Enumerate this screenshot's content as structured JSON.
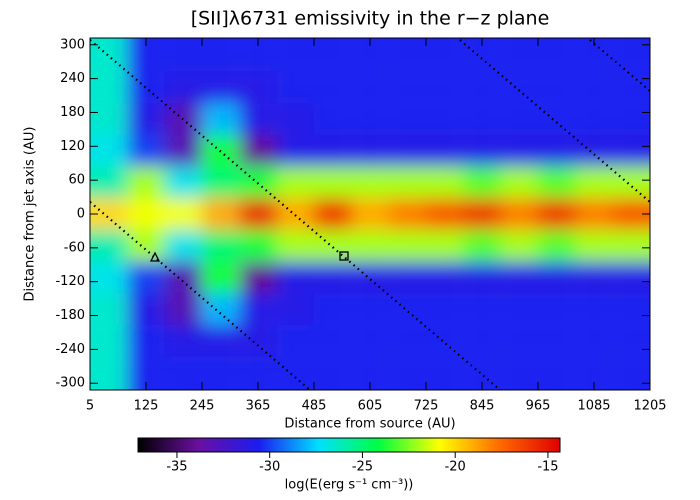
{
  "chart_data": {
    "type": "heatmap",
    "title": "[SII]λ6731 emissivity in the r−z plane",
    "x_label": "Distance from source (AU)",
    "y_label": "Distance from jet axis (AU)",
    "colorbar_label": "log(E(erg s⁻¹ cm⁻³))",
    "xlim": [
      5,
      1205
    ],
    "ylim": [
      -312,
      312
    ],
    "xticks": [
      5,
      125,
      245,
      365,
      485,
      605,
      725,
      845,
      965,
      1085,
      1205
    ],
    "yticks": [
      300,
      240,
      180,
      120,
      60,
      0,
      -60,
      -120,
      -180,
      -240,
      -300
    ],
    "clim": [
      -37.1,
      -14.35
    ],
    "cticks": [
      -35,
      -30,
      -25,
      -20,
      -15
    ],
    "colormap": [
      "#000000",
      "#6a0fa0",
      "#1c1cf0",
      "#00e0ff",
      "#00ff40",
      "#ffff00",
      "#ff6a00",
      "#e00000"
    ],
    "x": [
      45,
      125,
      205,
      285,
      365,
      445,
      525,
      605,
      685,
      765,
      845,
      925,
      1005,
      1085,
      1165
    ],
    "y": [
      280,
      224,
      168,
      112,
      56,
      0,
      -56,
      -112,
      -168,
      -224,
      -280
    ],
    "z": [
      [
        -26.5,
        -30.5,
        -30.5,
        -30.5,
        -30.5,
        -30.5,
        -30.5,
        -30.5,
        -30.5,
        -30.5,
        -30.5,
        -30.5,
        -30.5,
        -30.5,
        -30.5
      ],
      [
        -26.5,
        -30.5,
        -31,
        -31,
        -31,
        -30.5,
        -30.5,
        -30.5,
        -30.5,
        -30.5,
        -30.5,
        -30.5,
        -30.5,
        -30.5,
        -30.5
      ],
      [
        -26.5,
        -31,
        -33,
        -28,
        -31,
        -31,
        -30.5,
        -30.5,
        -30.5,
        -30.5,
        -30.5,
        -30.5,
        -30.5,
        -30.5,
        -30.5
      ],
      [
        -27,
        -30,
        -33,
        -24,
        -34,
        -31,
        -31,
        -31,
        -31,
        -31,
        -31,
        -31,
        -31,
        -31,
        -31
      ],
      [
        -26,
        -22,
        -27,
        -25,
        -24,
        -22,
        -22,
        -22,
        -22,
        -22,
        -23,
        -22,
        -23,
        -22,
        -22
      ],
      [
        -20,
        -21,
        -21,
        -19,
        -15.5,
        -19,
        -16,
        -19,
        -18,
        -17,
        -16,
        -18,
        -16,
        -18,
        -17
      ],
      [
        -26,
        -22,
        -27,
        -25,
        -24,
        -22,
        -22,
        -22,
        -22,
        -22,
        -23,
        -22,
        -23,
        -22,
        -22
      ],
      [
        -27,
        -30,
        -33,
        -24,
        -34,
        -31,
        -31,
        -31,
        -31,
        -31,
        -31,
        -31,
        -31,
        -31,
        -31
      ],
      [
        -26.5,
        -31,
        -33,
        -28,
        -31,
        -31,
        -30.5,
        -30.5,
        -30.5,
        -30.5,
        -30.5,
        -30.5,
        -30.5,
        -30.5,
        -30.5
      ],
      [
        -26.5,
        -30.5,
        -31,
        -31,
        -31,
        -30.5,
        -30.5,
        -30.5,
        -30.5,
        -30.5,
        -30.5,
        -30.5,
        -30.5,
        -30.5,
        -30.5
      ],
      [
        -26.5,
        -30.5,
        -30.5,
        -30.5,
        -30.5,
        -30.5,
        -30.5,
        -30.5,
        -30.5,
        -30.5,
        -30.5,
        -30.5,
        -30.5,
        -30.5,
        -30.5
      ]
    ]
  }
}
